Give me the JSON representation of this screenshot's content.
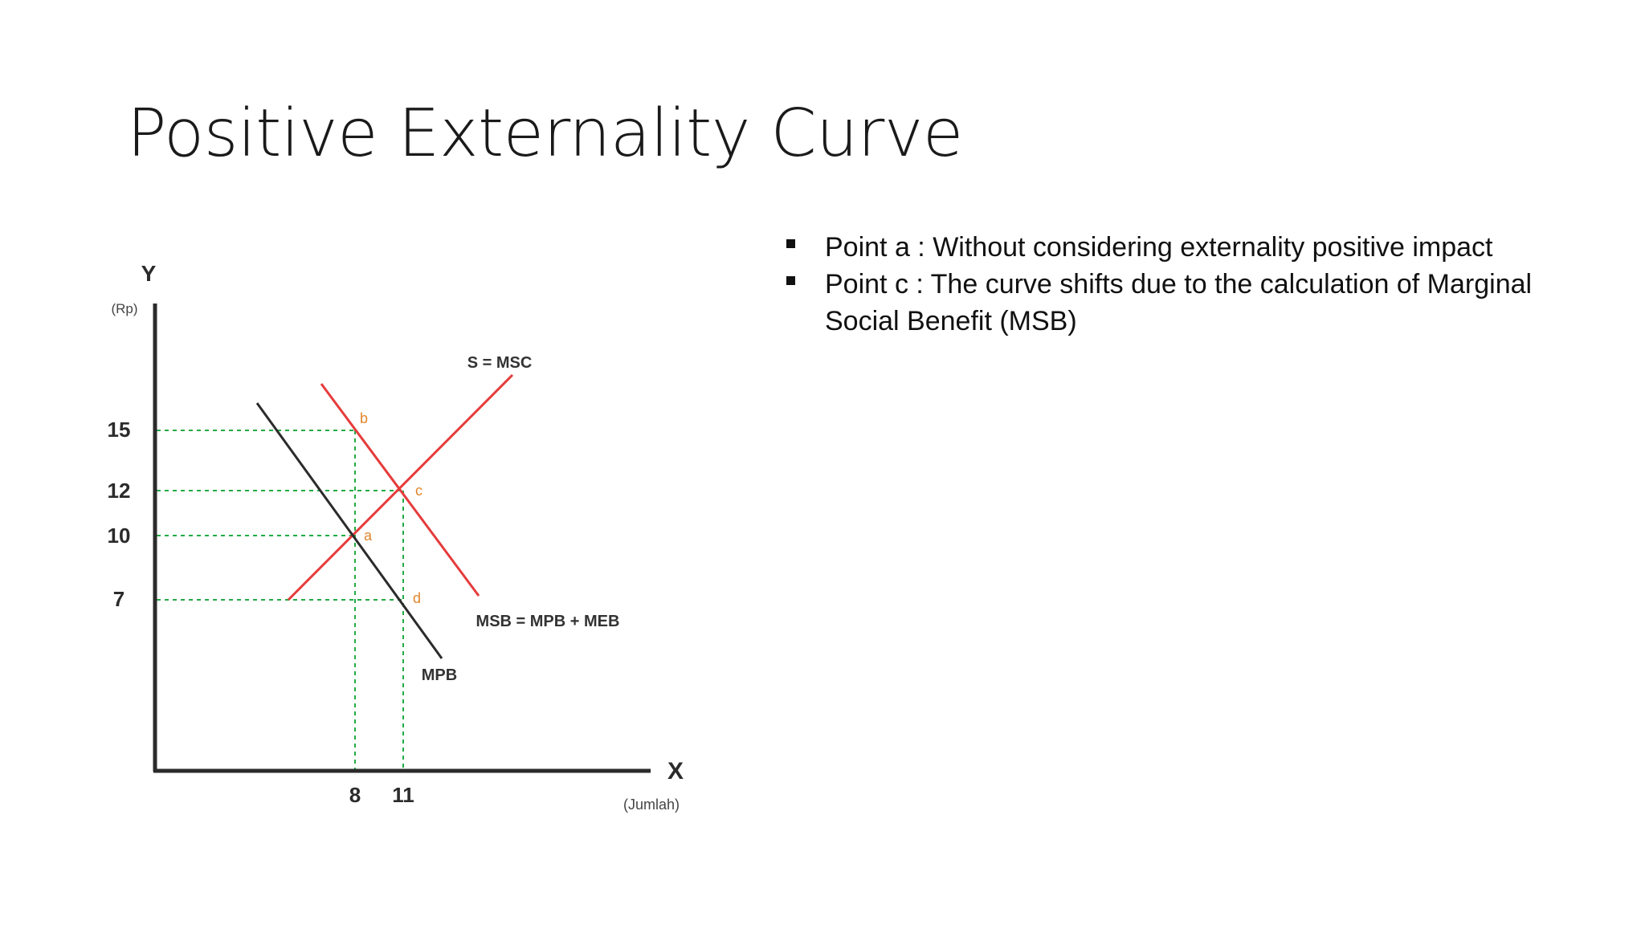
{
  "slide": {
    "title": "Positive Externality Curve",
    "bullets": [
      "Point a : Without considering externality positive impact",
      "Point c : The curve shifts due to the calculation of Marginal Social Benefit (MSB)"
    ]
  },
  "chart_data": {
    "type": "line",
    "y_axis_letter": "Y",
    "y_unit": "(Rp)",
    "x_axis_letter": "X",
    "x_unit": "(Jumlah)",
    "y_ticks": [
      "15",
      "12",
      "10",
      "7"
    ],
    "x_ticks": [
      "8",
      "11"
    ],
    "series": [
      {
        "name": "S = MSC",
        "color": "#e63b3b"
      },
      {
        "name": "MSB = MPB + MEB",
        "color": "#e63b3b"
      },
      {
        "name": "MPB",
        "color": "#2b2b2b"
      }
    ],
    "points": [
      {
        "label": "a",
        "x": 8,
        "y": 10
      },
      {
        "label": "b",
        "x": 8,
        "y": 15
      },
      {
        "label": "c",
        "x": 11,
        "y": 12
      },
      {
        "label": "d",
        "x": 11,
        "y": 7
      }
    ],
    "guide_color": "#22aa44",
    "point_label_color": "#e0862c"
  }
}
